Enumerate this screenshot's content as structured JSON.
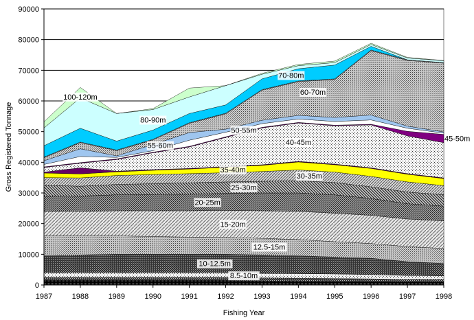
{
  "chart_data": {
    "type": "area",
    "xlabel": "Fishing Year",
    "ylabel": "Gross Registered Tonnage",
    "ylim": [
      0,
      90000
    ],
    "yticks": [
      "0",
      "10000",
      "20000",
      "30000",
      "40000",
      "50000",
      "60000",
      "70000",
      "80000",
      "90000"
    ],
    "categories": [
      "1987",
      "1988",
      "1989",
      "1990",
      "1991",
      "1992",
      "1993",
      "1994",
      "1995",
      "1996",
      "1997",
      "1998"
    ],
    "grid": "horizontal",
    "legend": "none",
    "series": [
      {
        "name": "",
        "color": "#000000",
        "pattern": "dense",
        "values": [
          1500,
          1500,
          1500,
          1500,
          1500,
          1500,
          1300,
          1200,
          1100,
          1000,
          900,
          900
        ]
      },
      {
        "name": "",
        "color": "#555555",
        "pattern": "checker",
        "values": [
          1000,
          1000,
          1000,
          1000,
          1000,
          1000,
          1000,
          1000,
          1000,
          1000,
          900,
          900
        ]
      },
      {
        "name": "8.5-10m",
        "color": "#bbbbbb",
        "pattern": "dots-light",
        "values": [
          1500,
          1500,
          1500,
          1500,
          1500,
          1500,
          1500,
          1500,
          1500,
          1400,
          1300,
          1200
        ]
      },
      {
        "name": "10-12.5m",
        "color": "#444444",
        "pattern": "checker",
        "values": [
          5500,
          5800,
          6000,
          6000,
          6000,
          6000,
          6000,
          5800,
          5500,
          5300,
          4500,
          4000
        ]
      },
      {
        "name": "12.5-15m",
        "color": "#aaaaaa",
        "pattern": "dots-gray",
        "values": [
          6500,
          6200,
          6000,
          5800,
          5600,
          5500,
          5400,
          5300,
          5000,
          4800,
          4900,
          4900
        ]
      },
      {
        "name": "15-20m",
        "color": "#999999",
        "pattern": "diag-light",
        "values": [
          8000,
          8000,
          8200,
          8400,
          8600,
          8800,
          9000,
          9200,
          9300,
          9200,
          9000,
          9000
        ]
      },
      {
        "name": "20-25m",
        "color": "#333333",
        "pattern": "diag-dense",
        "values": [
          5000,
          5000,
          5200,
          5300,
          5400,
          5600,
          5800,
          6000,
          6000,
          5500,
          5000,
          4800
        ]
      },
      {
        "name": "25-30m",
        "color": "#444444",
        "pattern": "diag-back",
        "values": [
          3500,
          3200,
          3400,
          3500,
          3700,
          3700,
          3800,
          4000,
          4000,
          3800,
          3800,
          3700
        ]
      },
      {
        "name": "30-35m",
        "color": "#888888",
        "pattern": "diag-mid",
        "values": [
          2500,
          2700,
          2900,
          3000,
          3000,
          3000,
          3200,
          3500,
          3400,
          3400,
          3300,
          3000
        ]
      },
      {
        "name": "35-40m",
        "color": "#ffff00",
        "pattern": "solid",
        "values": [
          1500,
          1300,
          1200,
          1400,
          1500,
          1800,
          2000,
          2600,
          2400,
          2600,
          2500,
          2300
        ]
      },
      {
        "name": "",
        "color": "#660066",
        "pattern": "solid",
        "values": [
          300,
          2000,
          200,
          200,
          200,
          200,
          200,
          200,
          200,
          200,
          200,
          200
        ]
      },
      {
        "name": "40-45m",
        "color": "#666666",
        "pattern": "dots-light",
        "values": [
          1500,
          1500,
          3800,
          5500,
          7000,
          9500,
          12000,
          12500,
          12500,
          14000,
          12300,
          11500
        ]
      },
      {
        "name": "45-50m",
        "color": "#800080",
        "pattern": "solid",
        "values": [
          200,
          200,
          200,
          200,
          200,
          200,
          200,
          200,
          200,
          200,
          1500,
          2700
        ]
      },
      {
        "name": "50-55m",
        "color": "#ffffff",
        "pattern": "solid",
        "values": [
          800,
          2000,
          500,
          500,
          2000,
          1500,
          1200,
          1100,
          1200,
          1400,
          1000,
          400
        ]
      },
      {
        "name": "55-60m",
        "color": "#9fc6ef",
        "pattern": "solid",
        "values": [
          1200,
          2500,
          500,
          2000,
          2500,
          1000,
          1100,
          1200,
          1300,
          1600,
          700,
          400
        ]
      },
      {
        "name": "",
        "color": "#aaaaaa",
        "pattern": "dots-gray",
        "values": [
          1000,
          2000,
          1700,
          1500,
          3000,
          5000,
          9800,
          11000,
          12400,
          21000,
          21400,
          22400
        ]
      },
      {
        "name": "60-70m",
        "color": "#888888",
        "pattern": "dots-gray",
        "values": [
          200,
          200,
          200,
          200,
          200,
          200,
          200,
          200,
          200,
          200,
          200,
          200
        ]
      },
      {
        "name": "70-80m",
        "color": "#00ccff",
        "pattern": "solid",
        "values": [
          3700,
          4500,
          2900,
          3000,
          3000,
          2700,
          3500,
          4000,
          4500,
          1200,
          0,
          0
        ]
      },
      {
        "name": "80-90m",
        "color": "#ccffff",
        "pattern": "solid",
        "values": [
          5800,
          9900,
          9000,
          6700,
          5400,
          6300,
          1500,
          1000,
          800,
          600,
          600,
          600
        ]
      },
      {
        "name": "100-120m",
        "color": "#ccffcc",
        "pattern": "solid",
        "values": [
          2000,
          3400,
          0,
          300,
          2900,
          0,
          300,
          400,
          500,
          400,
          200,
          100
        ]
      }
    ]
  }
}
